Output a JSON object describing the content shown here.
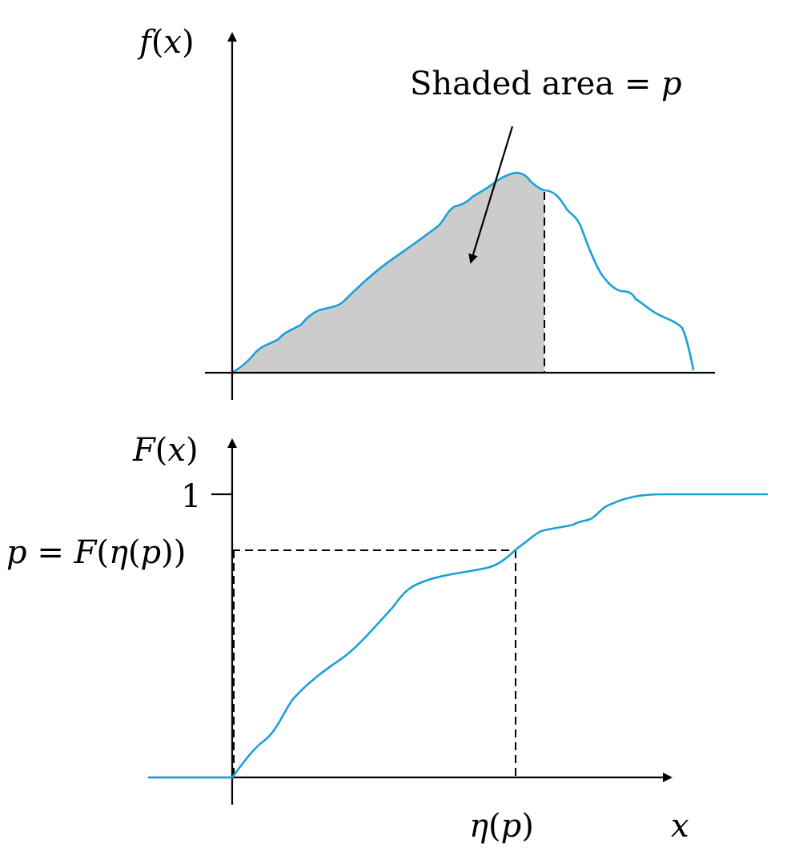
{
  "colors": {
    "curve": "#1aa0d8",
    "shade": "#cccccc",
    "axis": "#000000",
    "background": "#ffffff"
  },
  "top_panel": {
    "y_axis": {
      "f": "f",
      "open": "(",
      "var": "x",
      "close": ")"
    },
    "annotation": {
      "text": "Shaded area = ",
      "var": "p"
    }
  },
  "bottom_panel": {
    "y_axis": {
      "F": "F",
      "open": "(",
      "var": "x",
      "close": ")"
    },
    "tick_one": "1",
    "p_label": {
      "p": "p",
      "eq": " = ",
      "F": "F",
      "open1": "(",
      "eta": "η",
      "open2": "(",
      "p2": "p",
      "close": "))"
    },
    "x_labels": {
      "eta": "η",
      "open": "(",
      "p": "p",
      "close": ")",
      "x": "x"
    }
  }
}
